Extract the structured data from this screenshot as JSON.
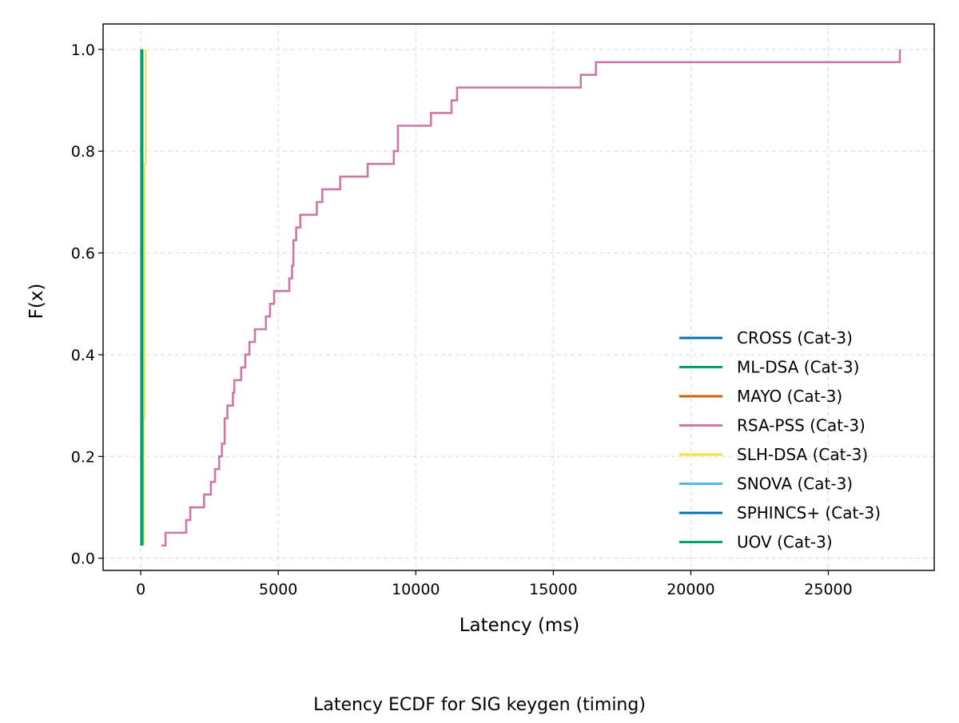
{
  "caption": "Latency ECDF for SIG keygen (timing)",
  "chart_data": {
    "type": "line",
    "title": "",
    "xlabel": "Latency (ms)",
    "ylabel": "F(x)",
    "xlim": [
      -1370,
      28850
    ],
    "ylim": [
      -0.024,
      1.05
    ],
    "xticks": [
      0,
      5000,
      10000,
      15000,
      20000,
      25000
    ],
    "yticks": [
      0.0,
      0.2,
      0.4,
      0.6,
      0.8,
      1.0
    ],
    "xtick_labels": [
      "0",
      "5000",
      "10000",
      "15000",
      "20000",
      "25000"
    ],
    "ytick_labels": [
      "0.0",
      "0.2",
      "0.4",
      "0.6",
      "0.8",
      "1.0"
    ],
    "grid": true,
    "legend_position": "lower-right",
    "series": [
      {
        "name": "CROSS (Cat-3)",
        "color": "#0072B2",
        "x": [
          20,
          20
        ],
        "y": [
          0.025,
          1.0
        ]
      },
      {
        "name": "ML-DSA (Cat-3)",
        "color": "#009E73",
        "x": [
          25,
          25
        ],
        "y": [
          0.025,
          1.0
        ]
      },
      {
        "name": "MAYO (Cat-3)",
        "color": "#D55E00",
        "x": [
          10,
          10
        ],
        "y": [
          0.025,
          1.0
        ]
      },
      {
        "name": "RSA-PSS (Cat-3)",
        "color": "#CC79A7",
        "x": [
          750,
          900,
          1650,
          1800,
          2300,
          2550,
          2700,
          2850,
          2950,
          3050,
          3150,
          3350,
          3400,
          3650,
          3800,
          3950,
          4150,
          4550,
          4700,
          4850,
          5400,
          5500,
          5550,
          5650,
          5800,
          6400,
          6600,
          7250,
          8250,
          9200,
          9350,
          10550,
          11300,
          11500,
          16000,
          16550,
          27600
        ],
        "y": [
          0.025,
          0.05,
          0.075,
          0.1,
          0.125,
          0.15,
          0.175,
          0.2,
          0.225,
          0.275,
          0.3,
          0.325,
          0.35,
          0.375,
          0.4,
          0.425,
          0.45,
          0.475,
          0.5,
          0.525,
          0.55,
          0.575,
          0.625,
          0.65,
          0.675,
          0.7,
          0.725,
          0.75,
          0.775,
          0.8,
          0.85,
          0.875,
          0.9,
          0.925,
          0.95,
          0.975,
          1.0
        ]
      },
      {
        "name": "SLH-DSA (Cat-3)",
        "color": "#F0E442",
        "x": [
          100,
          100,
          140,
          180
        ],
        "y": [
          0.025,
          0.275,
          0.775,
          1.0
        ]
      },
      {
        "name": "SNOVA (Cat-3)",
        "color": "#56B4E9",
        "x": [
          15,
          15
        ],
        "y": [
          0.025,
          1.0
        ]
      },
      {
        "name": "SPHINCS+ (Cat-3)",
        "color": "#0072B2",
        "x": [
          30,
          30
        ],
        "y": [
          0.025,
          1.0
        ]
      },
      {
        "name": "UOV (Cat-3)",
        "color": "#009E73",
        "x": [
          40,
          40
        ],
        "y": [
          0.025,
          1.0
        ]
      }
    ]
  }
}
